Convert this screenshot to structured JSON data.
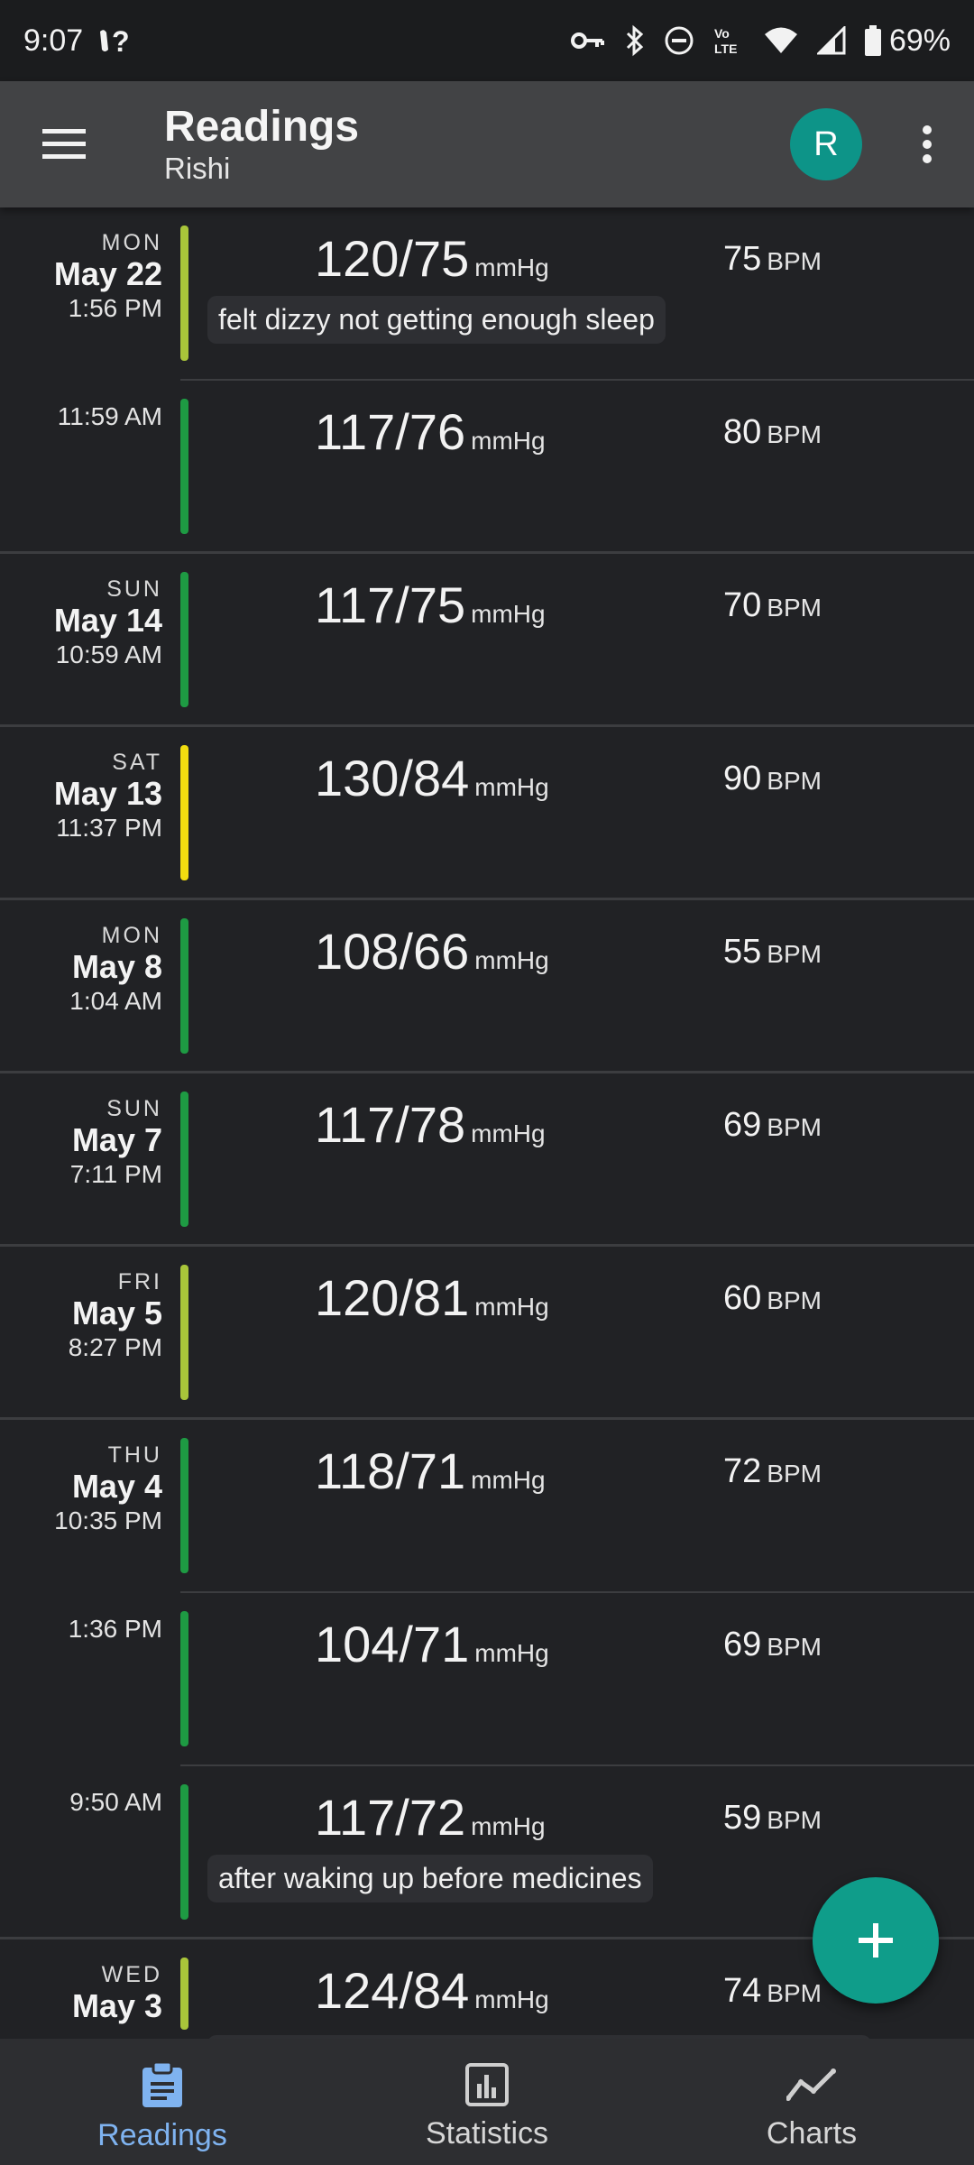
{
  "status_bar": {
    "time": "9:07",
    "battery": "69%",
    "icons": [
      "voicemail-icon",
      "key-icon",
      "bluetooth-icon",
      "dnd-icon",
      "volte-icon",
      "wifi-icon",
      "signal-icon",
      "battery-icon"
    ],
    "volte_label": "Vo LTE"
  },
  "app_bar": {
    "title": "Readings",
    "subtitle": "Rishi",
    "avatar_letter": "R"
  },
  "colors": {
    "green": "#1e9a43",
    "light_green": "#a9c53a",
    "yellow": "#f2dd10",
    "accent": "#0f9d8a"
  },
  "readings": [
    {
      "dow": "MON",
      "day": "May 22",
      "time": "1:56 PM",
      "bp": "120/75",
      "unit": "mmHg",
      "pulse": "75",
      "pulse_unit": "BPM",
      "note": "felt dizzy not getting enough sleep",
      "color": "light_green",
      "sep": "inset"
    },
    {
      "dow": "",
      "day": "",
      "time": "11:59 AM",
      "bp": "117/76",
      "unit": "mmHg",
      "pulse": "80",
      "pulse_unit": "BPM",
      "note": "",
      "color": "green",
      "sep": "full"
    },
    {
      "dow": "SUN",
      "day": "May 14",
      "time": "10:59 AM",
      "bp": "117/75",
      "unit": "mmHg",
      "pulse": "70",
      "pulse_unit": "BPM",
      "note": "",
      "color": "green",
      "sep": "full"
    },
    {
      "dow": "SAT",
      "day": "May 13",
      "time": "11:37 PM",
      "bp": "130/84",
      "unit": "mmHg",
      "pulse": "90",
      "pulse_unit": "BPM",
      "note": "",
      "color": "yellow",
      "sep": "full"
    },
    {
      "dow": "MON",
      "day": "May 8",
      "time": "1:04 AM",
      "bp": "108/66",
      "unit": "mmHg",
      "pulse": "55",
      "pulse_unit": "BPM",
      "note": "",
      "color": "green",
      "sep": "full"
    },
    {
      "dow": "SUN",
      "day": "May 7",
      "time": "7:11 PM",
      "bp": "117/78",
      "unit": "mmHg",
      "pulse": "69",
      "pulse_unit": "BPM",
      "note": "",
      "color": "green",
      "sep": "full"
    },
    {
      "dow": "FRI",
      "day": "May 5",
      "time": "8:27 PM",
      "bp": "120/81",
      "unit": "mmHg",
      "pulse": "60",
      "pulse_unit": "BPM",
      "note": "",
      "color": "light_green",
      "sep": "full"
    },
    {
      "dow": "THU",
      "day": "May 4",
      "time": "10:35 PM",
      "bp": "118/71",
      "unit": "mmHg",
      "pulse": "72",
      "pulse_unit": "BPM",
      "note": "",
      "color": "green",
      "sep": "inset"
    },
    {
      "dow": "",
      "day": "",
      "time": "1:36 PM",
      "bp": "104/71",
      "unit": "mmHg",
      "pulse": "69",
      "pulse_unit": "BPM",
      "note": "",
      "color": "green",
      "sep": "inset"
    },
    {
      "dow": "",
      "day": "",
      "time": "9:50 AM",
      "bp": "117/72",
      "unit": "mmHg",
      "pulse": "59",
      "pulse_unit": "BPM",
      "note": "after waking up before medicines",
      "color": "green",
      "sep": "full"
    },
    {
      "dow": "WED",
      "day": "May 3",
      "time": "",
      "bp": "124/84",
      "unit": "mmHg",
      "pulse": "74",
      "pulse_unit": "BPM",
      "note": "",
      "color": "light_green",
      "sep": "full",
      "partial": true
    }
  ],
  "bottom_nav": [
    {
      "label": "Readings",
      "icon": "clipboard-icon",
      "active": true
    },
    {
      "label": "Statistics",
      "icon": "bar-chart-icon",
      "active": false
    },
    {
      "label": "Charts",
      "icon": "line-chart-icon",
      "active": false
    }
  ]
}
